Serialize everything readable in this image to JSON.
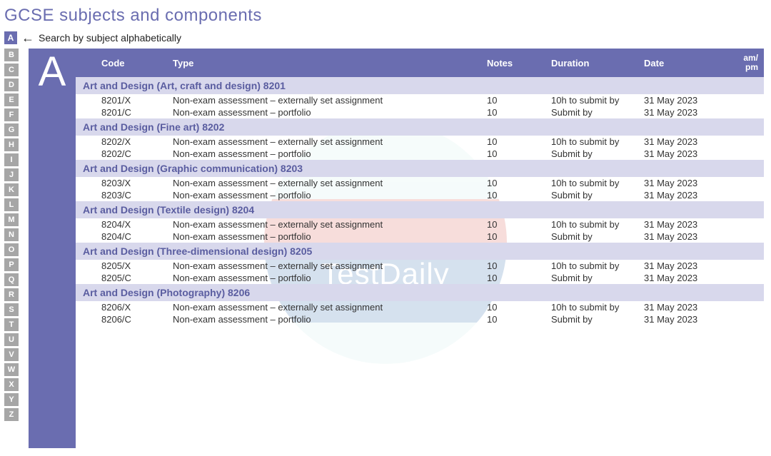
{
  "page": {
    "title": "GCSE subjects and components",
    "hint_badge": "A",
    "hint_text": "Search by subject alphabetically",
    "current_letter": "A"
  },
  "colors": {
    "primary": "#6a6db0",
    "subject_bg": "#d8d8ec",
    "subject_text": "#5a5da0",
    "alpha_bg": "#a6a6a6"
  },
  "alpha": [
    "B",
    "C",
    "D",
    "E",
    "F",
    "G",
    "H",
    "I",
    "J",
    "K",
    "L",
    "M",
    "N",
    "O",
    "P",
    "Q",
    "R",
    "S",
    "T",
    "U",
    "V",
    "W",
    "X",
    "Y",
    "Z"
  ],
  "headers": {
    "code": "Code",
    "type": "Type",
    "notes": "Notes",
    "duration": "Duration",
    "date": "Date",
    "ampm": "am/\npm"
  },
  "watermark": "TestDaily",
  "subjects": [
    {
      "title": "Art and Design (Art, craft and design)  8201",
      "rows": [
        {
          "code": "8201/X",
          "type": "Non-exam assessment – externally set assignment",
          "notes": "10",
          "duration": "10h to submit by",
          "date": "31 May 2023",
          "ampm": ""
        },
        {
          "code": "8201/C",
          "type": "Non-exam assessment – portfolio",
          "notes": "10",
          "duration": "Submit by",
          "date": "31 May 2023",
          "ampm": ""
        }
      ]
    },
    {
      "title": "Art and Design (Fine art)  8202",
      "rows": [
        {
          "code": "8202/X",
          "type": "Non-exam assessment – externally set assignment",
          "notes": "10",
          "duration": "10h to submit by",
          "date": "31 May 2023",
          "ampm": ""
        },
        {
          "code": "8202/C",
          "type": "Non-exam assessment – portfolio",
          "notes": "10",
          "duration": "Submit by",
          "date": "31 May 2023",
          "ampm": ""
        }
      ]
    },
    {
      "title": "Art and Design (Graphic communication)  8203",
      "rows": [
        {
          "code": "8203/X",
          "type": "Non-exam assessment – externally set assignment",
          "notes": "10",
          "duration": "10h to submit by",
          "date": "31 May 2023",
          "ampm": ""
        },
        {
          "code": "8203/C",
          "type": "Non-exam assessment – portfolio",
          "notes": "10",
          "duration": "Submit by",
          "date": "31 May 2023",
          "ampm": ""
        }
      ]
    },
    {
      "title": "Art and Design (Textile design)  8204",
      "rows": [
        {
          "code": "8204/X",
          "type": "Non-exam assessment – externally set assignment",
          "notes": "10",
          "duration": "10h to submit by",
          "date": "31 May 2023",
          "ampm": ""
        },
        {
          "code": "8204/C",
          "type": "Non-exam assessment – portfolio",
          "notes": "10",
          "duration": "Submit by",
          "date": "31 May 2023",
          "ampm": ""
        }
      ]
    },
    {
      "title": "Art and Design (Three-dimensional design)  8205",
      "rows": [
        {
          "code": "8205/X",
          "type": "Non-exam assessment – externally set assignment",
          "notes": "10",
          "duration": "10h to submit by",
          "date": "31 May 2023",
          "ampm": ""
        },
        {
          "code": "8205/C",
          "type": "Non-exam assessment – portfolio",
          "notes": "10",
          "duration": "Submit by",
          "date": "31 May 2023",
          "ampm": ""
        }
      ]
    },
    {
      "title": "Art and Design (Photography)  8206",
      "rows": [
        {
          "code": "8206/X",
          "type": "Non-exam assessment – externally set assignment",
          "notes": "10",
          "duration": "10h to submit by",
          "date": "31 May 2023",
          "ampm": ""
        },
        {
          "code": "8206/C",
          "type": "Non-exam assessment – portfolio",
          "notes": "10",
          "duration": "Submit by",
          "date": "31 May 2023",
          "ampm": ""
        }
      ]
    }
  ]
}
